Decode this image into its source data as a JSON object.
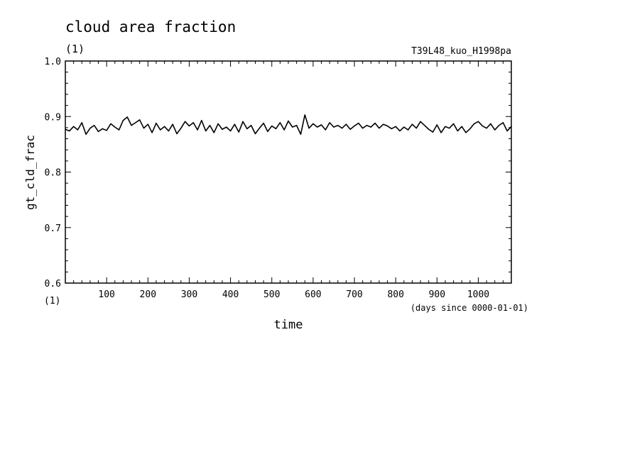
{
  "chart_data": {
    "type": "line",
    "title": "cloud area fraction",
    "title_units": "(1)",
    "experiment": "T39L48_kuo_H1998pa",
    "xlabel": "time",
    "xunits": "(days since 0000-01-01)",
    "ylabel": "gt_cld_frac",
    "yunits": "(1)",
    "xlim": [
      0,
      1080
    ],
    "ylim": [
      0.6,
      1.0
    ],
    "xticks": [
      100,
      200,
      300,
      400,
      500,
      600,
      700,
      800,
      900,
      1000
    ],
    "xtick_labels": [
      "100",
      "200",
      "300",
      "400",
      "500",
      "600",
      "700",
      "800",
      "900",
      "1000"
    ],
    "yticks": [
      0.6,
      0.7,
      0.8,
      0.9,
      1.0
    ],
    "ytick_labels": [
      "0.6",
      "0.7",
      "0.8",
      "0.9",
      "1.0"
    ],
    "line_color": "#000000",
    "x": [
      0,
      10,
      20,
      30,
      40,
      50,
      60,
      70,
      80,
      90,
      100,
      110,
      120,
      130,
      140,
      150,
      160,
      170,
      180,
      190,
      200,
      210,
      220,
      230,
      240,
      250,
      260,
      270,
      280,
      290,
      300,
      310,
      320,
      330,
      340,
      350,
      360,
      370,
      380,
      390,
      400,
      410,
      420,
      430,
      440,
      450,
      460,
      470,
      480,
      490,
      500,
      510,
      520,
      530,
      540,
      550,
      560,
      570,
      580,
      590,
      600,
      610,
      620,
      630,
      640,
      650,
      660,
      670,
      680,
      690,
      700,
      710,
      720,
      730,
      740,
      750,
      760,
      770,
      780,
      790,
      800,
      810,
      820,
      830,
      840,
      850,
      860,
      870,
      880,
      890,
      900,
      910,
      920,
      930,
      940,
      950,
      960,
      970,
      980,
      990,
      1000,
      1010,
      1020,
      1030,
      1040,
      1050,
      1060,
      1070,
      1080
    ],
    "y": [
      0.877,
      0.874,
      0.882,
      0.876,
      0.889,
      0.868,
      0.879,
      0.884,
      0.873,
      0.878,
      0.875,
      0.887,
      0.881,
      0.876,
      0.893,
      0.899,
      0.884,
      0.889,
      0.894,
      0.879,
      0.886,
      0.871,
      0.888,
      0.876,
      0.882,
      0.874,
      0.886,
      0.869,
      0.879,
      0.891,
      0.883,
      0.889,
      0.876,
      0.893,
      0.874,
      0.884,
      0.871,
      0.887,
      0.877,
      0.881,
      0.874,
      0.886,
      0.872,
      0.891,
      0.878,
      0.884,
      0.869,
      0.879,
      0.888,
      0.873,
      0.883,
      0.878,
      0.889,
      0.876,
      0.892,
      0.881,
      0.884,
      0.868,
      0.903,
      0.879,
      0.887,
      0.881,
      0.885,
      0.876,
      0.889,
      0.881,
      0.884,
      0.879,
      0.886,
      0.877,
      0.883,
      0.888,
      0.879,
      0.884,
      0.881,
      0.888,
      0.879,
      0.886,
      0.883,
      0.878,
      0.882,
      0.874,
      0.881,
      0.876,
      0.886,
      0.879,
      0.891,
      0.884,
      0.877,
      0.872,
      0.885,
      0.871,
      0.882,
      0.879,
      0.887,
      0.874,
      0.882,
      0.871,
      0.878,
      0.887,
      0.891,
      0.883,
      0.879,
      0.887,
      0.876,
      0.884,
      0.889,
      0.874,
      0.882
    ]
  }
}
